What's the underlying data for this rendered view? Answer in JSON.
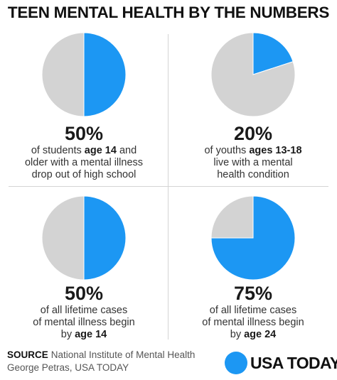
{
  "title": "TEEN MENTAL HEALTH BY THE NUMBERS",
  "colors": {
    "highlight": "#1c97f3",
    "rest": "#d3d3d3",
    "divider": "#d4d4d4"
  },
  "chart_data": [
    {
      "type": "pie",
      "values": [
        50,
        50
      ],
      "pct_label": "50%",
      "desc": {
        "l1a": "of students ",
        "l1b": "age 14",
        "l1c": " and",
        "l2": "older with a mental illness",
        "l3": "drop out of high school"
      }
    },
    {
      "type": "pie",
      "values": [
        20,
        80
      ],
      "pct_label": "20%",
      "desc": {
        "l1a": "of youths ",
        "l1b": "ages 13-18",
        "l2": "live with a mental",
        "l3": "health condition"
      }
    },
    {
      "type": "pie",
      "values": [
        50,
        50
      ],
      "pct_label": "50%",
      "desc": {
        "l1": "of all lifetime cases",
        "l2": "of mental illness begin",
        "l3a": "by ",
        "l3b": "age 14"
      }
    },
    {
      "type": "pie",
      "values": [
        75,
        25
      ],
      "pct_label": "75%",
      "desc": {
        "l1": "of all lifetime cases",
        "l2": "of mental illness begin",
        "l3a": "by ",
        "l3b": "age 24"
      }
    }
  ],
  "source": {
    "label": "SOURCE",
    "text": "National Institute of Mental Health",
    "credit": "George Petras, USA TODAY"
  },
  "brand": {
    "name": "USA TODAY"
  }
}
